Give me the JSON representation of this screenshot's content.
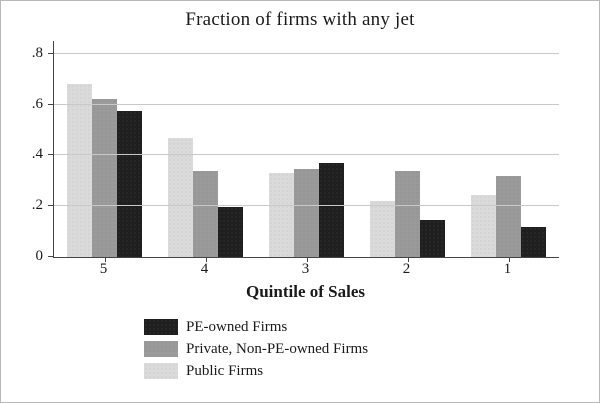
{
  "chart_data": {
    "type": "bar",
    "title": "Fraction of firms with any jet",
    "xlabel": "Quintile of Sales",
    "ylabel": "",
    "categories": [
      "5",
      "4",
      "3",
      "2",
      "1"
    ],
    "series": [
      {
        "name": "Public Firms",
        "color": "#dadada",
        "fill_class": "fill-public",
        "values": [
          0.68,
          0.47,
          0.33,
          0.22,
          0.245
        ]
      },
      {
        "name": "Private, Non-PE-owned Firms",
        "color": "#9a9a9a",
        "fill_class": "fill-private",
        "values": [
          0.62,
          0.34,
          0.345,
          0.34,
          0.32
        ]
      },
      {
        "name": "PE-owned Firms",
        "color": "#1f1f1f",
        "fill_class": "fill-pe",
        "values": [
          0.575,
          0.195,
          0.37,
          0.145,
          0.12
        ]
      }
    ],
    "ylim": [
      0,
      0.85
    ],
    "y_ticks": [
      {
        "value": 0,
        "label": "0"
      },
      {
        "value": 0.2,
        "label": ".2"
      },
      {
        "value": 0.4,
        "label": ".4"
      },
      {
        "value": 0.6,
        "label": ".6"
      },
      {
        "value": 0.8,
        "label": ".8"
      }
    ],
    "grid": true,
    "legend_position": "bottom",
    "legend_order": [
      {
        "label": "PE-owned Firms",
        "fill_class": "fill-pe"
      },
      {
        "label": "Private, Non-PE-owned Firms",
        "fill_class": "fill-private"
      },
      {
        "label": "Public Firms",
        "fill_class": "fill-public"
      }
    ]
  }
}
